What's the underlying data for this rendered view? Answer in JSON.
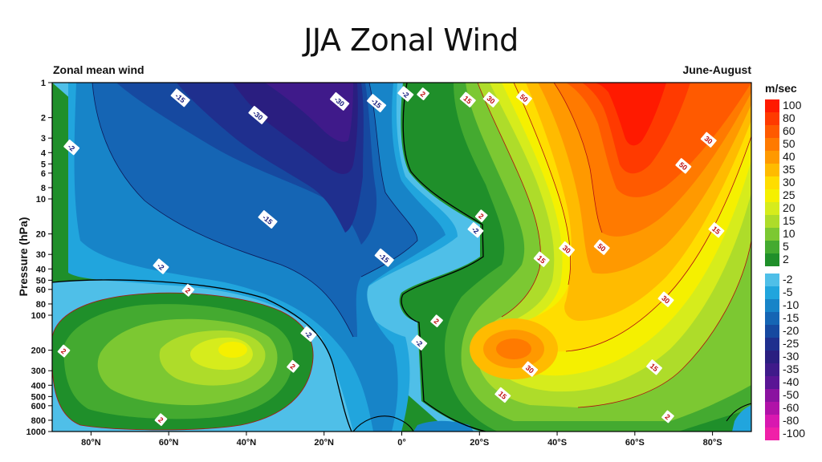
{
  "slide_title": "JJA Zonal Wind",
  "chart_data": {
    "type": "contour",
    "title_left": "Zonal mean wind",
    "title_right": "June-August",
    "ylabel": "Pressure (hPa)",
    "xlabel": "",
    "y_scale": "log",
    "y_inverted": true,
    "ylim": [
      1,
      1000
    ],
    "xlim": [
      90,
      -90
    ],
    "x_ticks": [
      {
        "value": 80,
        "label": "80°N"
      },
      {
        "value": 60,
        "label": "60°N"
      },
      {
        "value": 40,
        "label": "40°N"
      },
      {
        "value": 20,
        "label": "20°N"
      },
      {
        "value": 0,
        "label": "0°"
      },
      {
        "value": -20,
        "label": "20°S"
      },
      {
        "value": -40,
        "label": "40°S"
      },
      {
        "value": -60,
        "label": "60°S"
      },
      {
        "value": -80,
        "label": "80°S"
      }
    ],
    "y_ticks": [
      {
        "value": 1,
        "label": "1"
      },
      {
        "value": 2,
        "label": "2"
      },
      {
        "value": 3,
        "label": "3"
      },
      {
        "value": 4,
        "label": "4"
      },
      {
        "value": 5,
        "label": "5"
      },
      {
        "value": 6,
        "label": "6"
      },
      {
        "value": 8,
        "label": "8"
      },
      {
        "value": 10,
        "label": "10"
      },
      {
        "value": 20,
        "label": "20"
      },
      {
        "value": 30,
        "label": "30"
      },
      {
        "value": 40,
        "label": "40"
      },
      {
        "value": 50,
        "label": "50"
      },
      {
        "value": 60,
        "label": "60"
      },
      {
        "value": 80,
        "label": "80"
      },
      {
        "value": 100,
        "label": "100"
      },
      {
        "value": 200,
        "label": "200"
      },
      {
        "value": 300,
        "label": "300"
      },
      {
        "value": 400,
        "label": "400"
      },
      {
        "value": 500,
        "label": "500"
      },
      {
        "value": 600,
        "label": "600"
      },
      {
        "value": 800,
        "label": "800"
      },
      {
        "value": 1000,
        "label": "1000"
      }
    ],
    "legend": {
      "unit": "m/sec",
      "positive": [
        {
          "label": "100",
          "color": "#ff1a00"
        },
        {
          "label": "80",
          "color": "#ff3a00"
        },
        {
          "label": "60",
          "color": "#ff5a00"
        },
        {
          "label": "50",
          "color": "#ff7a00"
        },
        {
          "label": "40",
          "color": "#ff9900"
        },
        {
          "label": "35",
          "color": "#ffbb00"
        },
        {
          "label": "30",
          "color": "#ffdd00"
        },
        {
          "label": "25",
          "color": "#f5f000"
        },
        {
          "label": "20",
          "color": "#d6ec1c"
        },
        {
          "label": "15",
          "color": "#aedc2a"
        },
        {
          "label": "10",
          "color": "#7cc832"
        },
        {
          "label": "5",
          "color": "#44aa30"
        },
        {
          "label": "2",
          "color": "#1f8f2a"
        }
      ],
      "negative": [
        {
          "label": "-2",
          "color": "#4fbfe8"
        },
        {
          "label": "-5",
          "color": "#21a5dd"
        },
        {
          "label": "-10",
          "color": "#1784c8"
        },
        {
          "label": "-15",
          "color": "#1565b4"
        },
        {
          "label": "-20",
          "color": "#1649a0"
        },
        {
          "label": "-25",
          "color": "#1f2f8e"
        },
        {
          "label": "-30",
          "color": "#2a1e80"
        },
        {
          "label": "-35",
          "color": "#3f1a8a"
        },
        {
          "label": "-40",
          "color": "#5a1595"
        },
        {
          "label": "-50",
          "color": "#8a12a0"
        },
        {
          "label": "-60",
          "color": "#b012a8"
        },
        {
          "label": "-80",
          "color": "#d818b0"
        },
        {
          "label": "-100",
          "color": "#f020a8"
        }
      ]
    },
    "contour_labels": [
      {
        "lat": 57,
        "p": 1.35,
        "value": "-15",
        "color": "#1a2080"
      },
      {
        "lat": 37,
        "p": 1.9,
        "value": "-30",
        "color": "#1a2080"
      },
      {
        "lat": 16,
        "p": 1.45,
        "value": "-30",
        "color": "#1a2080"
      },
      {
        "lat": 6.5,
        "p": 1.5,
        "value": "-15",
        "color": "#1a2080"
      },
      {
        "lat": -1,
        "p": 1.25,
        "value": "-2",
        "color": "#1a2080"
      },
      {
        "lat": -5.5,
        "p": 1.25,
        "value": "2",
        "color": "#c01010"
      },
      {
        "lat": 85,
        "p": 3.6,
        "value": "-2",
        "color": "#1a2080"
      },
      {
        "lat": -17,
        "p": 1.4,
        "value": "15",
        "color": "#c01010"
      },
      {
        "lat": -23,
        "p": 1.4,
        "value": "30",
        "color": "#c01010"
      },
      {
        "lat": -31.5,
        "p": 1.35,
        "value": "50",
        "color": "#c01010"
      },
      {
        "lat": -79,
        "p": 3.1,
        "value": "30",
        "color": "#c01010"
      },
      {
        "lat": -72.5,
        "p": 5.2,
        "value": "50",
        "color": "#c01010"
      },
      {
        "lat": 34.5,
        "p": 15,
        "value": "-15",
        "color": "#1a2080"
      },
      {
        "lat": -20.5,
        "p": 14,
        "value": "2",
        "color": "#c01010"
      },
      {
        "lat": -19,
        "p": 18.5,
        "value": "-2",
        "color": "#1a2080"
      },
      {
        "lat": -81,
        "p": 18.5,
        "value": "15",
        "color": "#c01010"
      },
      {
        "lat": -42.5,
        "p": 27,
        "value": "30",
        "color": "#c01010"
      },
      {
        "lat": -51.5,
        "p": 26,
        "value": "50",
        "color": "#c01010"
      },
      {
        "lat": -36,
        "p": 33,
        "value": "15",
        "color": "#c01010"
      },
      {
        "lat": 4.5,
        "p": 32,
        "value": "-15",
        "color": "#1a2080"
      },
      {
        "lat": 62,
        "p": 38,
        "value": "-2",
        "color": "#1a2080"
      },
      {
        "lat": 55,
        "p": 61,
        "value": "2",
        "color": "#c01010"
      },
      {
        "lat": -68,
        "p": 73,
        "value": "30",
        "color": "#c01010"
      },
      {
        "lat": -9,
        "p": 112,
        "value": "2",
        "color": "#c01010"
      },
      {
        "lat": 24,
        "p": 145,
        "value": "-2",
        "color": "#1a2080"
      },
      {
        "lat": -4.5,
        "p": 172,
        "value": "-2",
        "color": "#1a2080"
      },
      {
        "lat": 87,
        "p": 203,
        "value": "2",
        "color": "#c01010"
      },
      {
        "lat": 28,
        "p": 275,
        "value": "2",
        "color": "#c01010"
      },
      {
        "lat": -33,
        "p": 290,
        "value": "30",
        "color": "#c01010"
      },
      {
        "lat": -65,
        "p": 280,
        "value": "15",
        "color": "#c01010"
      },
      {
        "lat": -26,
        "p": 485,
        "value": "15",
        "color": "#c01010"
      },
      {
        "lat": 62,
        "p": 790,
        "value": "2",
        "color": "#c01010"
      },
      {
        "lat": -68.5,
        "p": 745,
        "value": "2",
        "color": "#c01010"
      }
    ]
  }
}
